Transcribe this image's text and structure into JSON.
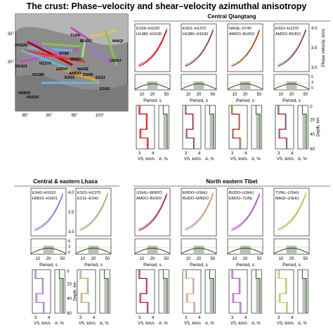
{
  "title": "The crust: Phase–velocity and shear–velocity azimuthal anisotropy",
  "colors": {
    "red": "#b00000",
    "pink": "#e33",
    "blue": "#66b8e6",
    "green": "#8bc34a",
    "lightgreen": "#9fe07a",
    "magenta": "#c050c0",
    "purple": "#a070d0",
    "orange": "#e0a030",
    "yellow": "#e5c060",
    "darkgreen": "#2e6b1f",
    "gray": "#bdbdbd"
  },
  "map": {
    "x_ticks": [
      "85°",
      "90°",
      "95°",
      "100°"
    ],
    "y_ticks": [
      "35°",
      "30°"
    ],
    "stations": [
      "TUNL",
      "H1620",
      "BUDO",
      "ST40",
      "MAQI",
      "H1421",
      "ERDO",
      "WNDO",
      "USHU",
      "H1380",
      "H1370",
      "AMDO",
      "NASE",
      "ES09",
      "ES11",
      "ES01",
      "H0810",
      "H1010",
      "ES42"
    ]
  },
  "panel_axes": {
    "phase_velocity_label": "Phase velocity, km/s",
    "phase_velocity_ticks": [
      "3.0",
      "3.5",
      "4.0"
    ],
    "diff_label": "Diff, %",
    "diff_ticks": [
      "0",
      "3",
      "6"
    ],
    "period_label": "Period, s",
    "period_ticks": [
      "10",
      "20",
      "50"
    ],
    "depth_label": "Depth, km",
    "depth_ticks": [
      "0",
      "20",
      "40",
      "60"
    ],
    "vs_label": "VS, km/s",
    "vs_ticks": [
      "3",
      "4"
    ],
    "aniso_label": "A, %",
    "aniso_ticks": [
      "−5",
      "0"
    ]
  },
  "chart_data": [
    {
      "type": "line",
      "region": "Central Qiangtang",
      "panels": [
        {
          "legend": [
            {
              "name": "ES09–H1620",
              "color": "pink"
            },
            {
              "name": "H1380–H1630",
              "color": "red"
            }
          ]
        },
        {
          "legend": [
            {
              "name": "ES01–H1370",
              "color": "blue"
            },
            {
              "name": "H1380–H1630",
              "color": "red"
            }
          ]
        },
        {
          "legend": [
            {
              "name": "NASE–ST40",
              "color": "lightgreen"
            },
            {
              "name": "AMDO–BUDO",
              "color": "red"
            }
          ]
        },
        {
          "legend": [
            {
              "name": "ES01–H1370",
              "color": "blue"
            },
            {
              "name": "AMDO–BUDO",
              "color": "red"
            }
          ]
        }
      ]
    },
    {
      "type": "line",
      "region": "Central & eastern Lhasa",
      "panels": [
        {
          "legend": [
            {
              "name": "ES42–H1010",
              "color": "blue"
            },
            {
              "name": "H0810–H1421",
              "color": "magenta"
            }
          ]
        },
        {
          "legend": [
            {
              "name": "ES01–H1370",
              "color": "blue"
            },
            {
              "name": "ES11–ES42",
              "color": "orange"
            }
          ]
        }
      ]
    },
    {
      "type": "line",
      "region": "North eastern Tibet",
      "panels": [
        {
          "legend": [
            {
              "name": "USHU–WNDO",
              "color": "purple"
            },
            {
              "name": "AMDO–BUDO",
              "color": "red"
            }
          ]
        },
        {
          "legend": [
            {
              "name": "ERDO–USHU",
              "color": "purple"
            },
            {
              "name": "BUDO–WNDO",
              "color": "yellow"
            }
          ]
        },
        {
          "legend": [
            {
              "name": "BUDO–USHU",
              "color": "purple"
            },
            {
              "name": "ERDO–TUNL",
              "color": "magenta"
            }
          ]
        },
        {
          "legend": [
            {
              "name": "TUNL–USHU",
              "color": "green"
            },
            {
              "name": "MAQI–USHU",
              "color": "yellow"
            }
          ]
        }
      ]
    }
  ]
}
